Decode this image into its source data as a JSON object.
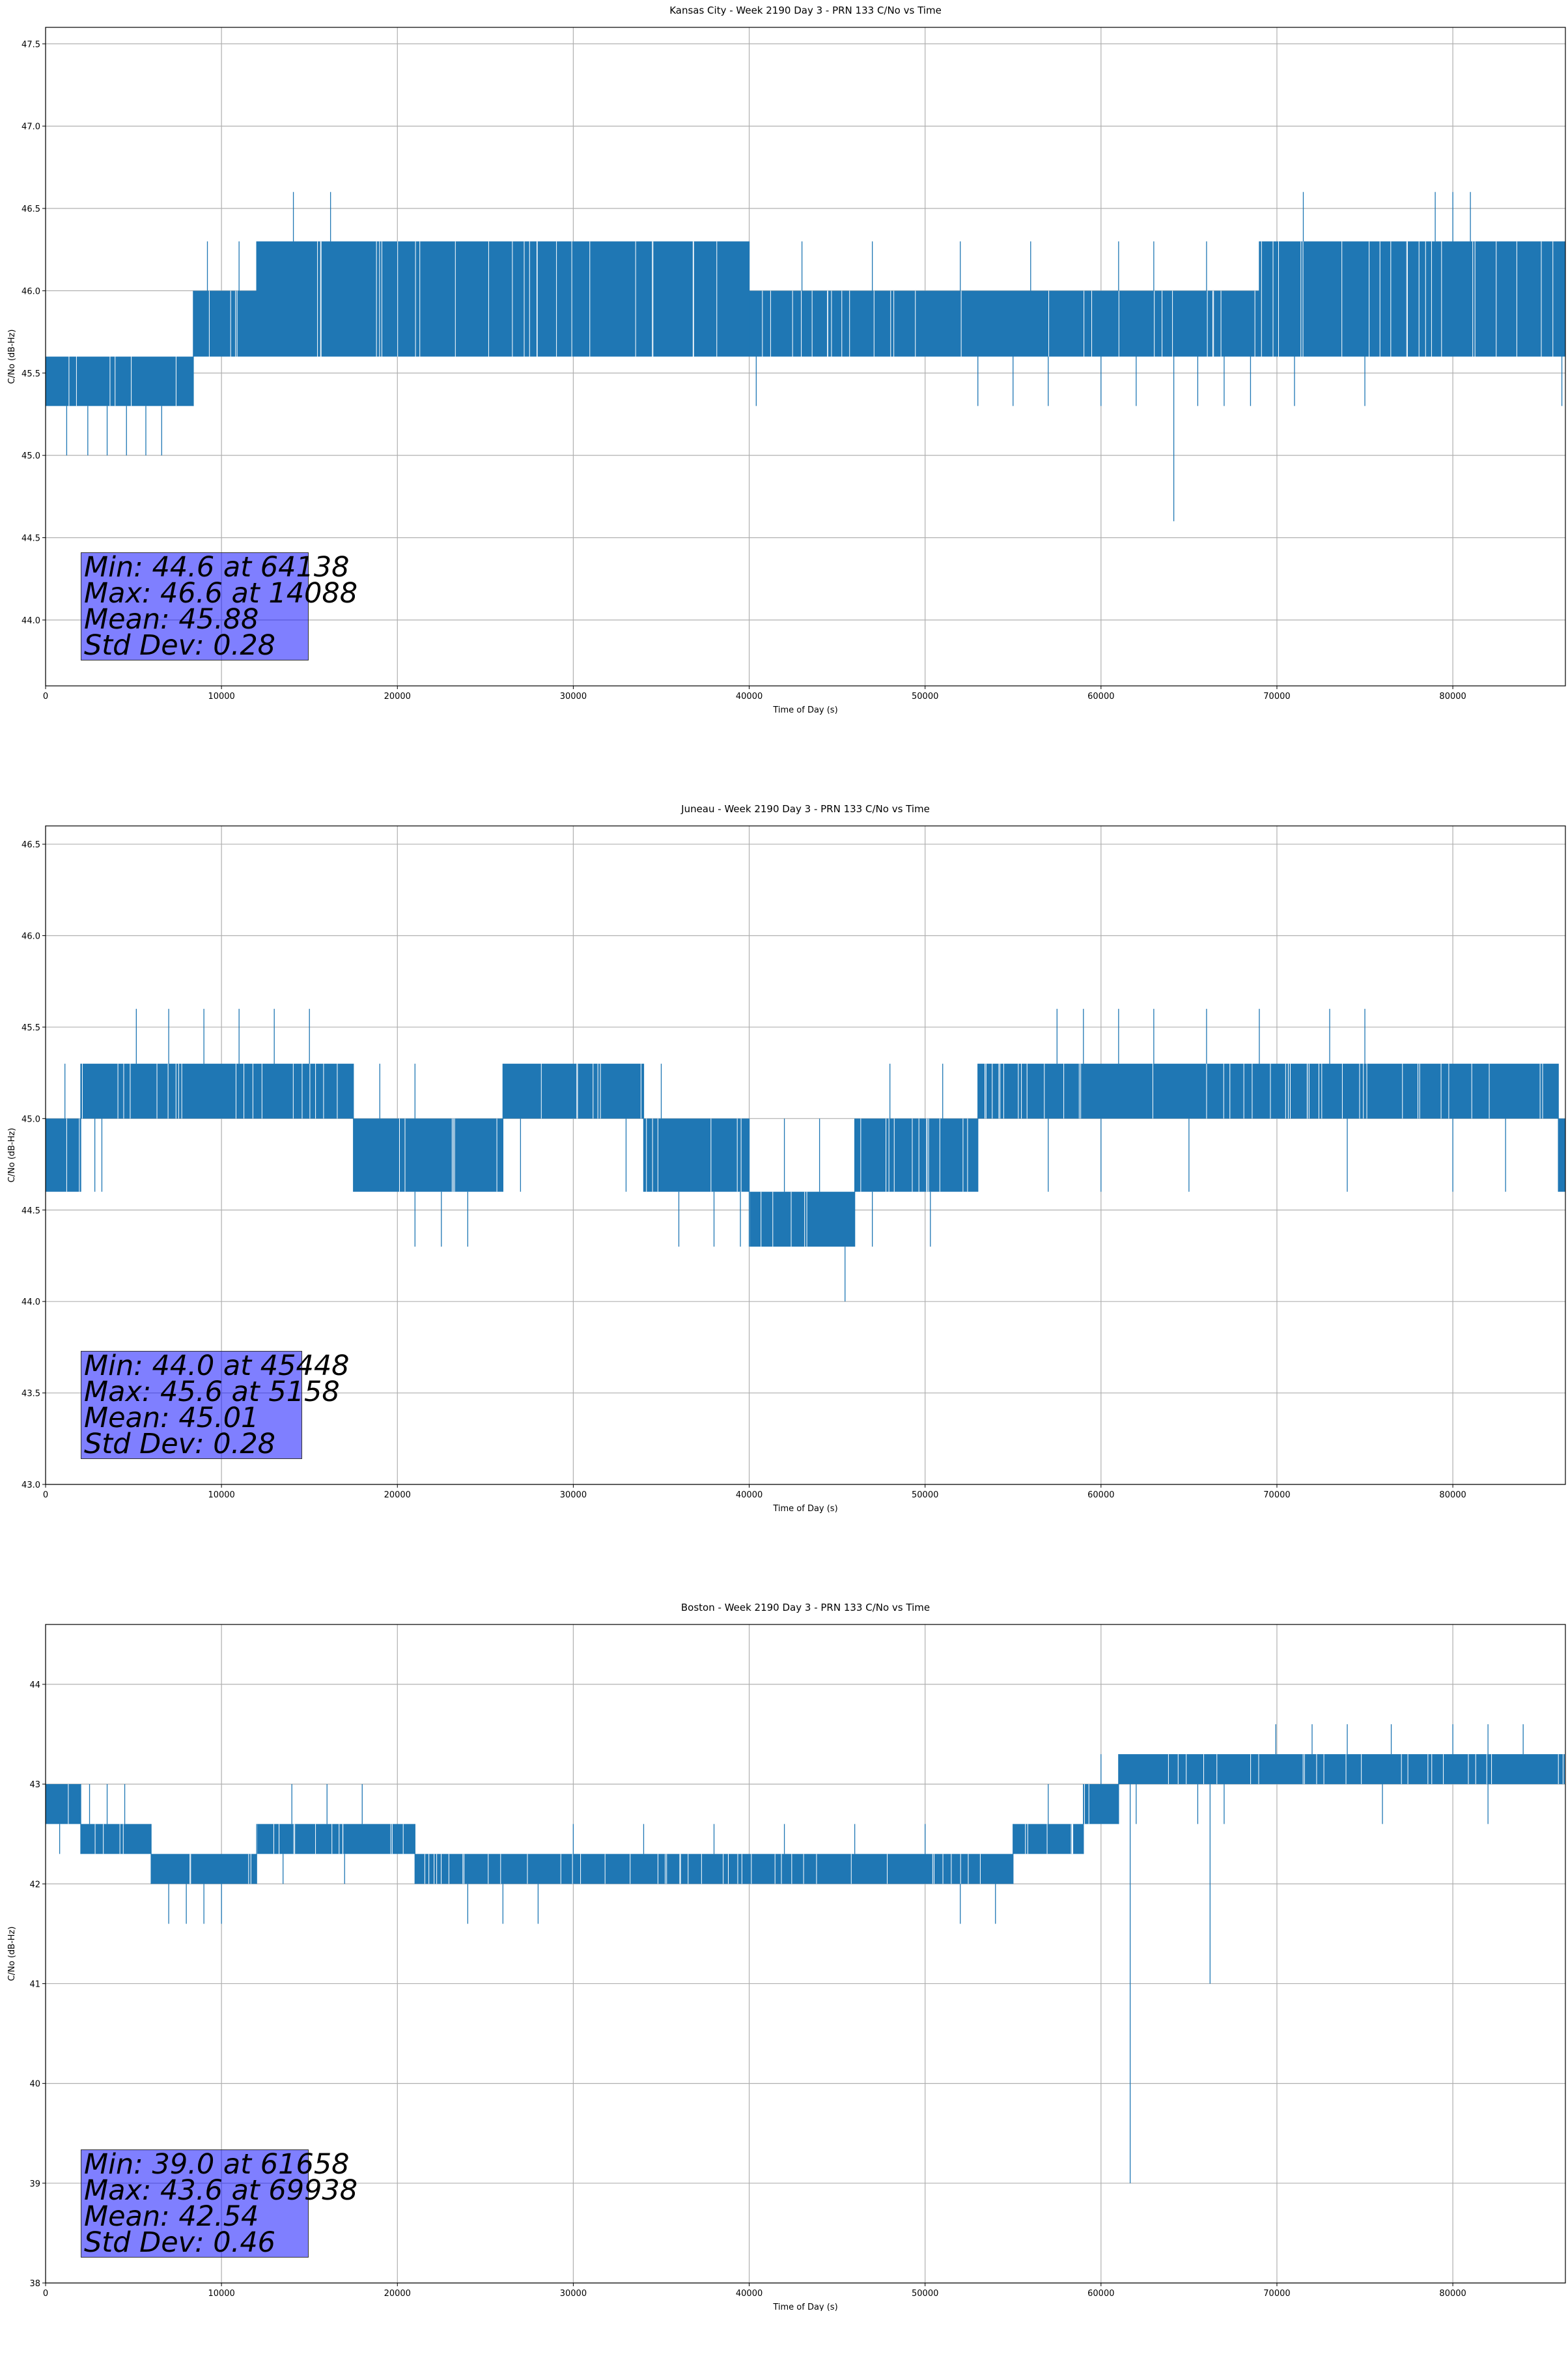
{
  "chart_data": [
    {
      "type": "line",
      "title": "Kansas City - Week 2190 Day 3 - PRN 133 C/No vs Time",
      "xlabel": "Time of Day (s)",
      "ylabel": "C/No (dB-Hz)",
      "xlim": [
        0,
        86400
      ],
      "ylim": [
        43.6,
        47.6
      ],
      "xticks": [
        0,
        10000,
        20000,
        30000,
        40000,
        50000,
        60000,
        70000,
        80000
      ],
      "yticks": [
        "44.0",
        "44.5",
        "45.0",
        "45.5",
        "46.0",
        "46.5",
        "47.0",
        "47.5"
      ],
      "grid": true,
      "color": "#1f77b4",
      "segments": [
        {
          "x0": 0,
          "x1": 8400,
          "lo": 45.3,
          "hi": 45.6,
          "dips": [
            [
              1200,
              45.0
            ],
            [
              2400,
              45.0
            ],
            [
              3500,
              45.0
            ],
            [
              4600,
              45.0
            ],
            [
              5700,
              45.0
            ],
            [
              6600,
              45.0
            ]
          ],
          "spikes": [
            [
              5300,
              45.6
            ]
          ]
        },
        {
          "x0": 8400,
          "x1": 12000,
          "lo": 45.6,
          "hi": 46.0,
          "dips": [],
          "spikes": [
            [
              9200,
              46.3
            ],
            [
              11000,
              46.3
            ]
          ]
        },
        {
          "x0": 12000,
          "x1": 40000,
          "lo": 45.6,
          "hi": 46.3,
          "dips": [],
          "spikes": [
            [
              14088,
              46.6
            ],
            [
              16200,
              46.6
            ]
          ]
        },
        {
          "x0": 40000,
          "x1": 69000,
          "lo": 45.6,
          "hi": 46.0,
          "dips": [
            [
              40400,
              45.3
            ],
            [
              53000,
              45.3
            ],
            [
              55000,
              45.3
            ],
            [
              57000,
              45.3
            ],
            [
              60000,
              45.3
            ],
            [
              62000,
              45.3
            ],
            [
              64138,
              44.6
            ],
            [
              65500,
              45.3
            ],
            [
              67000,
              45.3
            ],
            [
              68500,
              45.3
            ]
          ],
          "spikes": [
            [
              43000,
              46.3
            ],
            [
              47000,
              46.3
            ],
            [
              52000,
              46.3
            ],
            [
              56000,
              46.3
            ],
            [
              61000,
              46.3
            ],
            [
              63000,
              46.3
            ],
            [
              66000,
              46.3
            ]
          ]
        },
        {
          "x0": 69000,
          "x1": 86400,
          "lo": 45.6,
          "hi": 46.3,
          "dips": [
            [
              71000,
              45.3
            ],
            [
              75000,
              45.3
            ],
            [
              86200,
              45.3
            ]
          ],
          "spikes": [
            [
              71500,
              46.6
            ],
            [
              79000,
              46.6
            ],
            [
              80000,
              46.6
            ],
            [
              81000,
              46.6
            ]
          ]
        }
      ],
      "stats": {
        "min": "Min: 44.6 at 64138",
        "max": "Max: 46.6 at 14088",
        "mean": "Mean: 45.88",
        "std": "Std Dev: 0.28"
      }
    },
    {
      "type": "line",
      "title": "Juneau - Week 2190 Day 3 - PRN 133 C/No vs Time",
      "xlabel": "Time of Day (s)",
      "ylabel": "C/No (dB-Hz)",
      "xlim": [
        0,
        86400
      ],
      "ylim": [
        43.0,
        46.6
      ],
      "xticks": [
        0,
        10000,
        20000,
        30000,
        40000,
        50000,
        60000,
        70000,
        80000
      ],
      "yticks": [
        "43.0",
        "43.5",
        "44.0",
        "44.5",
        "45.0",
        "45.5",
        "46.0",
        "46.5"
      ],
      "grid": true,
      "color": "#1f77b4",
      "segments": [
        {
          "x0": 0,
          "x1": 2000,
          "lo": 44.6,
          "hi": 45.0,
          "dips": [],
          "spikes": [
            [
              1100,
              45.3
            ]
          ]
        },
        {
          "x0": 2000,
          "x1": 17500,
          "lo": 45.0,
          "hi": 45.3,
          "dips": [
            [
              2800,
              44.6
            ],
            [
              3200,
              44.6
            ]
          ],
          "spikes": [
            [
              5158,
              45.6
            ],
            [
              7000,
              45.6
            ],
            [
              9000,
              45.6
            ],
            [
              11000,
              45.6
            ],
            [
              13000,
              45.6
            ],
            [
              15000,
              45.6
            ]
          ]
        },
        {
          "x0": 17500,
          "x1": 26000,
          "lo": 44.6,
          "hi": 45.0,
          "dips": [
            [
              21000,
              44.3
            ],
            [
              22500,
              44.3
            ],
            [
              24000,
              44.3
            ]
          ],
          "spikes": [
            [
              19000,
              45.3
            ],
            [
              21000,
              45.3
            ]
          ]
        },
        {
          "x0": 26000,
          "x1": 34000,
          "lo": 45.0,
          "hi": 45.3,
          "dips": [
            [
              27000,
              44.6
            ],
            [
              33000,
              44.6
            ]
          ],
          "spikes": []
        },
        {
          "x0": 34000,
          "x1": 40000,
          "lo": 44.6,
          "hi": 45.0,
          "dips": [
            [
              36000,
              44.3
            ],
            [
              38000,
              44.3
            ],
            [
              39500,
              44.3
            ]
          ],
          "spikes": [
            [
              35000,
              45.3
            ]
          ]
        },
        {
          "x0": 40000,
          "x1": 46000,
          "lo": 44.3,
          "hi": 44.6,
          "dips": [
            [
              45448,
              44.0
            ]
          ],
          "spikes": [
            [
              42000,
              45.0
            ],
            [
              44000,
              45.0
            ]
          ]
        },
        {
          "x0": 46000,
          "x1": 53000,
          "lo": 44.6,
          "hi": 45.0,
          "dips": [
            [
              47000,
              44.3
            ],
            [
              50300,
              44.3
            ]
          ],
          "spikes": [
            [
              48000,
              45.3
            ],
            [
              51000,
              45.3
            ]
          ]
        },
        {
          "x0": 53000,
          "x1": 86000,
          "lo": 45.0,
          "hi": 45.3,
          "dips": [
            [
              57000,
              44.6
            ],
            [
              60000,
              44.6
            ],
            [
              65000,
              44.6
            ],
            [
              74000,
              44.6
            ],
            [
              80000,
              44.6
            ],
            [
              83000,
              44.6
            ]
          ],
          "spikes": [
            [
              57500,
              45.6
            ],
            [
              59000,
              45.6
            ],
            [
              61000,
              45.6
            ],
            [
              63000,
              45.6
            ],
            [
              66000,
              45.6
            ],
            [
              69000,
              45.6
            ],
            [
              73000,
              45.6
            ],
            [
              75000,
              45.6
            ]
          ]
        },
        {
          "x0": 86000,
          "x1": 86400,
          "lo": 44.6,
          "hi": 45.0,
          "dips": [],
          "spikes": []
        }
      ],
      "stats": {
        "min": "Min: 44.0 at 45448",
        "max": "Max: 45.6 at 5158",
        "mean": "Mean: 45.01",
        "std": "Std Dev: 0.28"
      }
    },
    {
      "type": "line",
      "title": "Boston - Week 2190 Day 3 - PRN 133 C/No vs Time",
      "xlabel": "Time of Day (s)",
      "ylabel": "C/No (dB-Hz)",
      "xlim": [
        0,
        86400
      ],
      "ylim": [
        38.0,
        44.6
      ],
      "xticks": [
        0,
        10000,
        20000,
        30000,
        40000,
        50000,
        60000,
        70000,
        80000
      ],
      "yticks": [
        "38",
        "39",
        "40",
        "41",
        "42",
        "43",
        "44"
      ],
      "grid": true,
      "color": "#1f77b4",
      "segments": [
        {
          "x0": 0,
          "x1": 2000,
          "lo": 42.6,
          "hi": 43.0,
          "dips": [
            [
              800,
              42.3
            ]
          ],
          "spikes": []
        },
        {
          "x0": 2000,
          "x1": 6000,
          "lo": 42.3,
          "hi": 42.6,
          "dips": [],
          "spikes": [
            [
              2500,
              43.0
            ],
            [
              3500,
              43.0
            ],
            [
              4500,
              43.0
            ]
          ]
        },
        {
          "x0": 6000,
          "x1": 12000,
          "lo": 42.0,
          "hi": 42.3,
          "dips": [
            [
              7000,
              41.6
            ],
            [
              8000,
              41.6
            ],
            [
              9000,
              41.6
            ],
            [
              10000,
              41.6
            ]
          ],
          "spikes": []
        },
        {
          "x0": 12000,
          "x1": 21000,
          "lo": 42.3,
          "hi": 42.6,
          "dips": [
            [
              13500,
              42.0
            ],
            [
              17000,
              42.0
            ]
          ],
          "spikes": [
            [
              14000,
              43.0
            ],
            [
              16000,
              43.0
            ],
            [
              18000,
              43.0
            ]
          ]
        },
        {
          "x0": 21000,
          "x1": 55000,
          "lo": 42.0,
          "hi": 42.3,
          "dips": [
            [
              24000,
              41.6
            ],
            [
              26000,
              41.6
            ],
            [
              28000,
              41.6
            ],
            [
              52000,
              41.6
            ],
            [
              54000,
              41.6
            ]
          ],
          "spikes": [
            [
              30000,
              42.6
            ],
            [
              34000,
              42.6
            ],
            [
              38000,
              42.6
            ],
            [
              42000,
              42.6
            ],
            [
              46000,
              42.6
            ],
            [
              50000,
              42.6
            ]
          ]
        },
        {
          "x0": 55000,
          "x1": 59000,
          "lo": 42.3,
          "hi": 42.6,
          "dips": [],
          "spikes": [
            [
              57000,
              43.0
            ]
          ]
        },
        {
          "x0": 59000,
          "x1": 61000,
          "lo": 42.6,
          "hi": 43.0,
          "dips": [],
          "spikes": [
            [
              60000,
              43.3
            ]
          ]
        },
        {
          "x0": 61000,
          "x1": 86400,
          "lo": 43.0,
          "hi": 43.3,
          "dips": [
            [
              61658,
              39.0
            ],
            [
              66200,
              41.0
            ],
            [
              62000,
              42.6
            ],
            [
              65500,
              42.6
            ],
            [
              67000,
              42.6
            ],
            [
              76000,
              42.6
            ],
            [
              82000,
              42.6
            ]
          ],
          "spikes": [
            [
              69938,
              43.6
            ],
            [
              72000,
              43.6
            ],
            [
              74000,
              43.6
            ],
            [
              76500,
              43.6
            ],
            [
              80000,
              43.6
            ],
            [
              82000,
              43.6
            ],
            [
              84000,
              43.6
            ]
          ]
        }
      ],
      "stats": {
        "min": "Min: 39.0 at 61658",
        "max": "Max: 43.6 at 69938",
        "mean": "Mean: 42.54",
        "std": "Std Dev: 0.46"
      }
    }
  ]
}
